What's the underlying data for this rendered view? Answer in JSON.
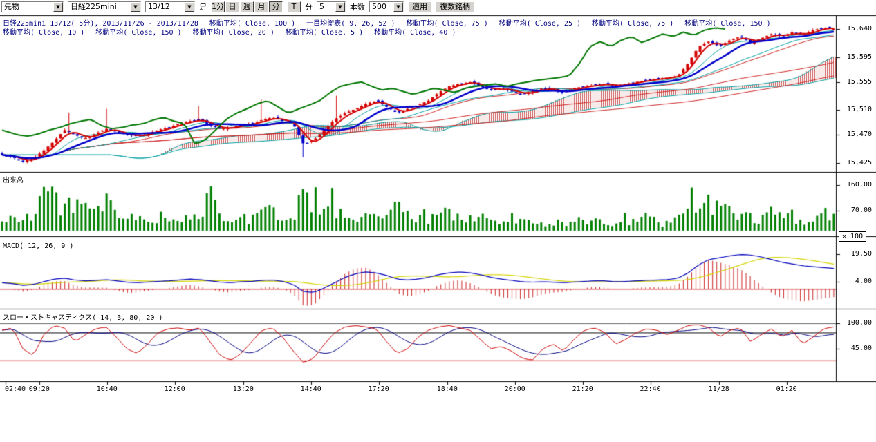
{
  "toolbar": {
    "market_select": "先物",
    "symbol_select": "日経225mini",
    "contract_select": "13/12",
    "timeframe_label": "足",
    "timeframe_buttons": [
      "1分",
      "日",
      "週",
      "月",
      "分"
    ],
    "timeframe_active": "分",
    "tick_button": "T",
    "minute_label": "分",
    "minute_value": "5",
    "bars_label": "本数",
    "bars_value": "500",
    "apply_button": "適用",
    "multi_symbol_button": "複数銘柄"
  },
  "legend": {
    "row1": [
      "日経225mini 13/12( 5分), 2013/11/26 - 2013/11/28",
      "移動平均( Close, 100 )",
      "一目均衡表( 9, 26, 52 )",
      "移動平均( Close, 75 )",
      "移動平均( Close, 25 )",
      "移動平均( Close, 75 )",
      "移動平均( Close, 150 )"
    ],
    "row2": [
      "移動平均( Close, 10 )",
      "移動平均( Close, 150 )",
      "移動平均( Close, 20 )",
      "移動平均( Close, 5 )",
      "移動平均( Close, 40 )"
    ]
  },
  "colors": {
    "up_candle": "#d40000",
    "down_candle": "#0000c8",
    "volume_bar": "#008000",
    "ma_fast_red": "#d40000",
    "ma_blue": "#0000cc",
    "ma_thin_red": "#cc2222",
    "ichimoku_cyan": "#00a0a0",
    "cloud_hatch": "#cc5555",
    "lagging_green": "#007700",
    "macd_line": "#0000bb",
    "macd_signal": "#d4d400",
    "macd_hist": "#cc2222",
    "macd_zero": "#cc0000",
    "stoch_k": "#cc0000",
    "stoch_d": "#000080",
    "band_100": "#666666",
    "band_80": "#000000",
    "band_20": "#cc0000",
    "legend_text": "#000080",
    "axis_text": "#000000"
  },
  "chart_data": {
    "type": "candlestick",
    "title": "日経225mini 13/12( 5分), 2013/11/26 - 2013/11/28",
    "x_ticks": [
      {
        "label": "02:40",
        "pos": 0.007
      },
      {
        "label": "09:20",
        "pos": 0.047
      },
      {
        "label": "10:40",
        "pos": 0.128
      },
      {
        "label": "12:00",
        "pos": 0.209
      },
      {
        "label": "13:20",
        "pos": 0.291
      },
      {
        "label": "14:40",
        "pos": 0.372
      },
      {
        "label": "17:20",
        "pos": 0.453
      },
      {
        "label": "18:40",
        "pos": 0.535
      },
      {
        "label": "20:00",
        "pos": 0.616
      },
      {
        "label": "21:20",
        "pos": 0.697
      },
      {
        "label": "22:40",
        "pos": 0.778
      },
      {
        "label": "11/28",
        "pos": 0.86
      },
      {
        "label": "01:20",
        "pos": 0.941
      }
    ],
    "panels": [
      {
        "name": "price",
        "type": "candlestick",
        "y_ticks": [
          {
            "label": "15,640",
            "value": 15640
          },
          {
            "label": "15,595",
            "value": 15595
          },
          {
            "label": "15,555",
            "value": 15555
          },
          {
            "label": "15,510",
            "value": 15510
          },
          {
            "label": "15,470",
            "value": 15470
          },
          {
            "label": "15,425",
            "value": 15425
          }
        ],
        "close": [
          15438,
          15434,
          15428,
          15432,
          15445,
          15460,
          15478,
          15470,
          15465,
          15472,
          15480,
          15475,
          15470,
          15468,
          15472,
          15478,
          15482,
          15488,
          15492,
          15495,
          15485,
          15480,
          15482,
          15486,
          15488,
          15494,
          15498,
          15492,
          15488,
          15455,
          15462,
          15478,
          15495,
          15505,
          15512,
          15520,
          15525,
          15515,
          15505,
          15512,
          15518,
          15525,
          15538,
          15548,
          15552,
          15555,
          15548,
          15542,
          15545,
          15540,
          15535,
          15540,
          15545,
          15542,
          15538,
          15545,
          15548,
          15550,
          15552,
          15548,
          15552,
          15555,
          15558,
          15560,
          15562,
          15565,
          15585,
          15612,
          15620,
          15612,
          15622,
          15628,
          15618,
          15625,
          15632,
          15628,
          15635,
          15630,
          15638,
          15642,
          15640
        ],
        "spikes": [
          {
            "t": 0.078,
            "high": 15506
          },
          {
            "t": 0.124,
            "high": 15512
          },
          {
            "t": 0.238,
            "high": 15517
          },
          {
            "t": 0.312,
            "high": 15527
          },
          {
            "t": 0.362,
            "low": 15434
          },
          {
            "t": 0.402,
            "high": 15533
          },
          {
            "t": 0.845,
            "high": 15612
          }
        ],
        "lagging_span_shift_bars": 26
      },
      {
        "name": "volume",
        "type": "bar",
        "title": "出来高",
        "unit_label": "× 100",
        "y_ticks": [
          {
            "label": "160.00",
            "value": 160
          },
          {
            "label": "70.00",
            "value": 70
          }
        ],
        "values": [
          30,
          45,
          60,
          40,
          155,
          130,
          90,
          110,
          70,
          55,
          95,
          60,
          45,
          40,
          35,
          50,
          40,
          45,
          35,
          45,
          150,
          40,
          30,
          35,
          45,
          60,
          70,
          50,
          55,
          160,
          90,
          60,
          75,
          55,
          45,
          50,
          60,
          45,
          90,
          50,
          40,
          35,
          55,
          70,
          50,
          40,
          45,
          35,
          30,
          45,
          35,
          30,
          25,
          30,
          25,
          35,
          40,
          30,
          35,
          25,
          30,
          35,
          45,
          30,
          25,
          40,
          80,
          110,
          90,
          70,
          60,
          80,
          50,
          45,
          60,
          40,
          50,
          35,
          45,
          55,
          60
        ]
      },
      {
        "name": "macd",
        "type": "line",
        "title": "MACD( 12, 26, 9 )",
        "y_ticks": [
          {
            "label": "19.50",
            "value": 19.5
          },
          {
            "label": "4.00",
            "value": 4.0
          }
        ],
        "zero_line": 0,
        "macd": [
          3.5,
          3.0,
          2.0,
          2.5,
          4.0,
          5.5,
          6.0,
          5.0,
          4.5,
          4.8,
          5.2,
          4.5,
          3.8,
          3.5,
          3.8,
          4.2,
          4.5,
          5.0,
          5.5,
          5.2,
          4.5,
          3.8,
          3.5,
          4.0,
          4.2,
          4.8,
          5.0,
          4.2,
          2.5,
          -1.5,
          -2.0,
          0.5,
          3.5,
          6.5,
          8.5,
          9.5,
          9.0,
          7.5,
          5.5,
          5.0,
          5.5,
          6.5,
          8.0,
          9.0,
          9.5,
          9.0,
          8.0,
          6.5,
          5.5,
          4.8,
          4.0,
          3.8,
          4.0,
          3.8,
          3.5,
          3.8,
          4.2,
          4.5,
          4.5,
          4.0,
          4.2,
          4.5,
          4.8,
          5.0,
          5.2,
          6.0,
          9.0,
          13.5,
          16.5,
          17.5,
          18.5,
          19.3,
          19.0,
          18.0,
          16.5,
          15.0,
          14.0,
          13.0,
          12.5,
          12.0,
          11.5
        ]
      },
      {
        "name": "stoch",
        "type": "line",
        "title": "スロー・ストキャスティクス( 14, 3, 80, 20 )",
        "y_ticks": [
          {
            "label": "100.00",
            "value": 100
          },
          {
            "label": "45.00",
            "value": 45
          }
        ],
        "bands": [
          80,
          20
        ],
        "k": [
          85,
          90,
          45,
          30,
          75,
          95,
          90,
          60,
          75,
          88,
          92,
          70,
          45,
          35,
          55,
          80,
          88,
          90,
          85,
          90,
          60,
          30,
          20,
          35,
          60,
          85,
          90,
          70,
          40,
          15,
          25,
          55,
          80,
          92,
          95,
          92,
          88,
          60,
          35,
          45,
          70,
          85,
          92,
          95,
          90,
          85,
          65,
          45,
          50,
          40,
          25,
          20,
          45,
          55,
          40,
          65,
          85,
          90,
          80,
          55,
          65,
          80,
          88,
          85,
          75,
          85,
          95,
          97,
          90,
          70,
          85,
          90,
          60,
          75,
          88,
          70,
          85,
          55,
          70,
          88,
          92
        ]
      }
    ]
  }
}
